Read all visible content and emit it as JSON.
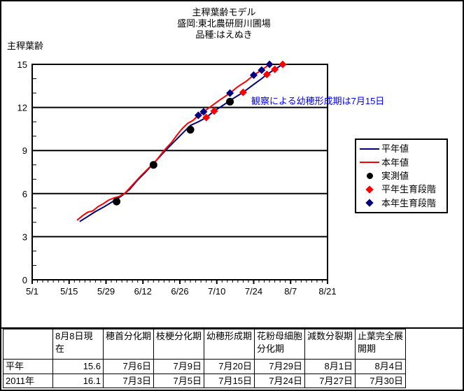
{
  "page": {
    "background": "#FFFFFF",
    "border_color": "#000000"
  },
  "chart_data": {
    "type": "line",
    "title_lines": [
      "主稈葉齢モデル",
      "盛岡:東北農研厨川圃場",
      "品種:はえぬき"
    ],
    "ylabel": "主稈葉齢",
    "xlabel": "",
    "ylim": [
      0,
      15
    ],
    "y_ticks": [
      0,
      3,
      6,
      9,
      12,
      15
    ],
    "x_tick_labels": [
      "5/1",
      "5/15",
      "5/29",
      "6/12",
      "6/26",
      "7/10",
      "7/24",
      "8/7",
      "8/21"
    ],
    "x_span_days": 112,
    "grid": "horizontal-only",
    "legend_position": "right",
    "annotation": {
      "text": "観察による幼穂形成期は7月15日",
      "color": "#0000FF"
    },
    "series": [
      {
        "key": "normal-year-line",
        "name": "平年値",
        "type": "line",
        "color": "#000080",
        "points": [
          [
            "5/19",
            4.05
          ],
          [
            "5/22",
            4.4
          ],
          [
            "5/25",
            4.75
          ],
          [
            "5/28",
            5.05
          ],
          [
            "6/1",
            5.5
          ],
          [
            "6/4",
            5.85
          ],
          [
            "6/7",
            6.3
          ],
          [
            "6/10",
            6.95
          ],
          [
            "6/13",
            7.5
          ],
          [
            "6/16",
            8.1
          ],
          [
            "6/20",
            8.9
          ],
          [
            "6/24",
            9.65
          ],
          [
            "6/27",
            10.2
          ],
          [
            "6/30",
            10.75
          ],
          [
            "7/3",
            11.0
          ],
          [
            "7/6",
            11.3
          ],
          [
            "7/9",
            11.75
          ],
          [
            "7/12",
            12.1
          ],
          [
            "7/16",
            12.6
          ],
          [
            "7/20",
            13.05
          ],
          [
            "7/24",
            13.6
          ],
          [
            "7/27",
            14.0
          ],
          [
            "7/29",
            14.3
          ],
          [
            "8/1",
            14.65
          ],
          [
            "8/4",
            15.0
          ]
        ]
      },
      {
        "key": "this-year-line",
        "name": "本年値",
        "type": "line",
        "color": "#FF0000",
        "points": [
          [
            "5/18",
            4.15
          ],
          [
            "5/20",
            4.45
          ],
          [
            "5/22",
            4.7
          ],
          [
            "5/24",
            4.8
          ],
          [
            "5/26",
            5.1
          ],
          [
            "5/28",
            5.3
          ],
          [
            "5/30",
            5.55
          ],
          [
            "6/1",
            5.7
          ],
          [
            "6/3",
            5.8
          ],
          [
            "6/5",
            6.0
          ],
          [
            "6/8",
            6.6
          ],
          [
            "6/11",
            7.2
          ],
          [
            "6/14",
            7.75
          ],
          [
            "6/17",
            8.3
          ],
          [
            "6/20",
            9.0
          ],
          [
            "6/23",
            9.6
          ],
          [
            "6/25",
            10.1
          ],
          [
            "6/27",
            10.55
          ],
          [
            "6/29",
            10.9
          ],
          [
            "7/1",
            11.1
          ],
          [
            "7/3",
            11.45
          ],
          [
            "7/5",
            11.7
          ],
          [
            "7/8",
            12.1
          ],
          [
            "7/11",
            12.5
          ],
          [
            "7/15",
            13.0
          ],
          [
            "7/18",
            13.45
          ],
          [
            "7/21",
            13.8
          ],
          [
            "7/24",
            14.25
          ],
          [
            "7/27",
            14.6
          ],
          [
            "7/30",
            15.0
          ]
        ]
      },
      {
        "key": "observed-points",
        "name": "実測値",
        "type": "circle",
        "color": "#000000",
        "points": [
          [
            "6/2",
            5.45
          ],
          [
            "6/16",
            8.0
          ],
          [
            "6/30",
            10.45
          ],
          [
            "7/15",
            12.4
          ]
        ]
      },
      {
        "key": "normal-year-stages",
        "name": "平年生育段階",
        "type": "diamond",
        "color": "#FF0000",
        "points": [
          [
            "7/6",
            11.3
          ],
          [
            "7/9",
            11.75
          ],
          [
            "7/20",
            13.05
          ],
          [
            "7/29",
            14.3
          ],
          [
            "8/1",
            14.65
          ],
          [
            "8/4",
            15.0
          ]
        ]
      },
      {
        "key": "this-year-stages",
        "name": "本年生育段階",
        "type": "diamond",
        "color": "#000080",
        "points": [
          [
            "7/3",
            11.45
          ],
          [
            "7/5",
            11.7
          ],
          [
            "7/15",
            13.0
          ],
          [
            "7/24",
            14.25
          ],
          [
            "7/27",
            14.6
          ],
          [
            "7/30",
            15.0
          ]
        ]
      }
    ]
  },
  "table": {
    "headers": [
      "",
      "8月8日現在",
      "穂首分化期",
      "枝梗分化期",
      "幼穂形成期",
      "花粉母細胞分化期",
      "減数分裂期",
      "止葉完全展開期"
    ],
    "rows": [
      {
        "label": "平年",
        "values": [
          "15.6",
          "7月6日",
          "7月9日",
          "7月20日",
          "7月29日",
          "8月1日",
          "8月4日"
        ]
      },
      {
        "label": "2011年",
        "values": [
          "16.1",
          "7月3日",
          "7月5日",
          "7月15日",
          "7月24日",
          "7月27日",
          "7月30日"
        ]
      }
    ]
  }
}
